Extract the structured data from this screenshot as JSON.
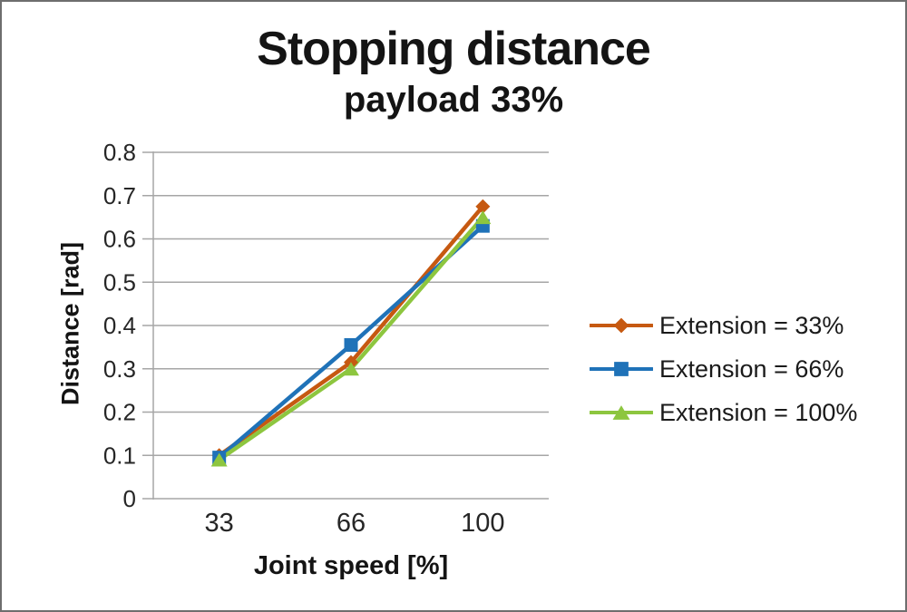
{
  "chart": {
    "title": "Stopping distance",
    "subtitle": "payload 33%",
    "xlabel": "Joint speed [%]",
    "ylabel": "Distance [rad]"
  },
  "chart_data": {
    "type": "line",
    "title": "Stopping distance",
    "subtitle": "payload 33%",
    "xlabel": "Joint speed [%]",
    "ylabel": "Distance [rad]",
    "categories": [
      "33",
      "66",
      "100"
    ],
    "series": [
      {
        "name": "Extension = 33%",
        "color": "#C65911",
        "marker": "diamond",
        "values": [
          0.1,
          0.315,
          0.675
        ]
      },
      {
        "name": "Extension = 66%",
        "color": "#1F72B8",
        "marker": "square",
        "values": [
          0.095,
          0.355,
          0.63
        ]
      },
      {
        "name": "Extension = 100%",
        "color": "#8DC63F",
        "marker": "triangle",
        "values": [
          0.09,
          0.3,
          0.65
        ]
      }
    ],
    "ylim": [
      0,
      0.8
    ],
    "ytick_step": 0.1,
    "ytick_labels": [
      "0",
      "0.1",
      "0.2",
      "0.3",
      "0.4",
      "0.5",
      "0.6",
      "0.7",
      "0.8"
    ],
    "grid": true,
    "gridline_color": "#A6A6A6",
    "axis_color": "#A6A6A6",
    "legend_position": "right"
  }
}
